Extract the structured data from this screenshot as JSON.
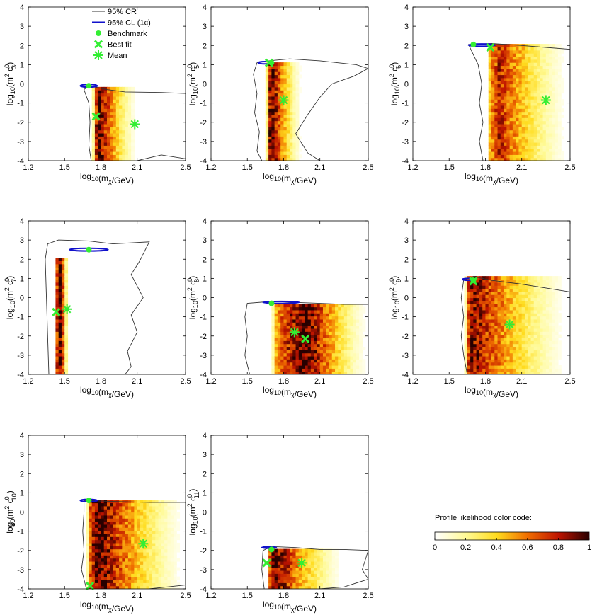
{
  "figure": {
    "x_axis": {
      "label_pre": "log",
      "label_base_sub": "10",
      "label_open": "(m",
      "label_m_sub": "χ",
      "label_close": "/GeV)",
      "ticks": [
        1.2,
        1.5,
        1.8,
        2.1,
        2.5
      ],
      "tick_labels": [
        "1.2",
        "1.5",
        "1.8",
        "2.1",
        "2.5"
      ],
      "range": [
        1.2,
        2.5
      ]
    },
    "y_axis": {
      "ticks": [
        -4,
        -3,
        -2,
        -1,
        0,
        1,
        2,
        3,
        4
      ],
      "tick_labels": [
        "-4",
        "-3",
        "-2",
        "-1",
        "0",
        "1",
        "2",
        "3",
        "4"
      ],
      "range": [
        -4,
        4
      ]
    },
    "legend": {
      "cr": "95% CR",
      "cl": "95% CL (1c)",
      "benchmark": "Benchmark",
      "bestfit": "Best fit",
      "mean": "Mean"
    },
    "colorbar": {
      "title": "Profile likelihood color code:",
      "ticks": [
        0,
        0.2,
        0.4,
        0.6,
        0.8,
        1
      ],
      "tick_labels": [
        "0",
        "0.2",
        "0.4",
        "0.6",
        "0.8",
        "1"
      ]
    },
    "colors": {
      "marker": "#33ee33",
      "ellipse": "#1111cc",
      "contour": "#333333"
    }
  },
  "chart_data": [
    {
      "type": "heatmap",
      "operator": "3",
      "ylabel_sub": "3",
      "benchmark": [
        1.7,
        -0.1
      ],
      "best_fit": [
        1.76,
        -1.7
      ],
      "mean": [
        2.08,
        -2.1
      ],
      "ellipse": {
        "cx": 1.7,
        "cy": -0.1,
        "rx": 0.07,
        "ry": 0.07
      },
      "band": {
        "xmin": 1.72,
        "xpeak": 1.77,
        "xmax": 2.1,
        "ytop": -0.3,
        "peak": 0.95
      },
      "contour": [
        [
          1.72,
          -4
        ],
        [
          1.7,
          -3.2
        ],
        [
          1.71,
          -2
        ],
        [
          1.7,
          -1
        ],
        [
          1.66,
          -0.3
        ],
        [
          1.7,
          -0.1
        ],
        [
          1.85,
          -0.3
        ],
        [
          2.0,
          -0.42
        ],
        [
          2.3,
          -0.45
        ],
        [
          2.5,
          -0.5
        ],
        [
          2.5,
          -3.9
        ],
        [
          2.3,
          -3.7
        ],
        [
          2.1,
          -4
        ]
      ]
    },
    {
      "type": "heatmap",
      "operator": "5",
      "ylabel_sub": "5",
      "benchmark": [
        1.7,
        1.1
      ],
      "best_fit": [
        1.68,
        1.1
      ],
      "mean": [
        1.8,
        -0.85
      ],
      "ellipse": {
        "cx": 1.65,
        "cy": 1.1,
        "rx": 0.06,
        "ry": 0.06
      },
      "band": {
        "xmin": 1.64,
        "xpeak": 1.69,
        "xmax": 1.95,
        "ytop": 1.0,
        "peak": 0.95
      },
      "contour": [
        [
          1.62,
          -4
        ],
        [
          1.58,
          -3.5
        ],
        [
          1.6,
          -2.5
        ],
        [
          1.56,
          -1.5
        ],
        [
          1.58,
          -0.5
        ],
        [
          1.55,
          0.5
        ],
        [
          1.58,
          1.1
        ],
        [
          1.68,
          1.2
        ],
        [
          1.85,
          1.3
        ],
        [
          2.1,
          1.2
        ],
        [
          2.4,
          1.0
        ],
        [
          2.5,
          0.8
        ],
        [
          2.38,
          0.4
        ],
        [
          2.2,
          0.0
        ],
        [
          2.1,
          -0.7
        ],
        [
          2.0,
          -1.6
        ],
        [
          1.9,
          -2.6
        ],
        [
          2.0,
          -3.6
        ],
        [
          2.1,
          -4
        ]
      ]
    },
    {
      "type": "heatmap",
      "operator": "6",
      "ylabel_sub": "6",
      "benchmark": [
        1.7,
        2.05
      ],
      "best_fit": [
        1.84,
        1.9
      ],
      "mean": [
        2.3,
        -0.85
      ],
      "ellipse": {
        "cx": 1.77,
        "cy": 2.02,
        "rx": 0.11,
        "ry": 0.06
      },
      "band": {
        "xmin": 1.8,
        "xpeak": 1.9,
        "xmax": 2.5,
        "ytop": 2.0,
        "peak": 0.75
      },
      "contour": [
        [
          1.78,
          -4
        ],
        [
          1.75,
          -3
        ],
        [
          1.78,
          -2
        ],
        [
          1.75,
          -1
        ],
        [
          1.77,
          0
        ],
        [
          1.74,
          1
        ],
        [
          1.66,
          2.05
        ],
        [
          1.85,
          2.1
        ],
        [
          2.1,
          2.0
        ],
        [
          2.3,
          1.9
        ],
        [
          2.5,
          1.8
        ],
        [
          2.5,
          -4
        ]
      ]
    },
    {
      "type": "heatmap",
      "operator": "7",
      "ylabel_sub": "7",
      "benchmark": [
        1.7,
        2.5
      ],
      "best_fit": [
        1.43,
        -0.75
      ],
      "mean": [
        1.52,
        -0.6
      ],
      "ellipse": {
        "cx": 1.7,
        "cy": 2.5,
        "rx": 0.16,
        "ry": 0.07
      },
      "band": {
        "xmin": 1.4,
        "xpeak": 1.46,
        "xmax": 1.52,
        "ytop": 2.0,
        "peak": 1.0
      },
      "contour": [
        [
          1.37,
          -4
        ],
        [
          1.36,
          -2
        ],
        [
          1.35,
          0
        ],
        [
          1.34,
          2
        ],
        [
          1.36,
          2.8
        ],
        [
          1.45,
          3.0
        ],
        [
          1.7,
          2.95
        ],
        [
          1.9,
          2.8
        ],
        [
          2.2,
          2.9
        ],
        [
          2.12,
          1.9
        ],
        [
          2.05,
          1.2
        ],
        [
          2.15,
          0.0
        ],
        [
          2.05,
          -0.9
        ],
        [
          2.1,
          -1.8
        ],
        [
          2.02,
          -2.8
        ],
        [
          2.05,
          -3.6
        ],
        [
          2.0,
          -4
        ]
      ]
    },
    {
      "type": "heatmap",
      "operator": "8",
      "ylabel_sub": "8",
      "benchmark": [
        1.7,
        -0.3
      ],
      "best_fit": [
        1.98,
        -2.15
      ],
      "mean": [
        1.89,
        -1.8
      ],
      "ellipse": {
        "cx": 1.78,
        "cy": -0.25,
        "rx": 0.15,
        "ry": 0.05
      },
      "band": {
        "xmin": 1.68,
        "xpeak": 1.98,
        "xmax": 2.5,
        "ytop": -0.4,
        "peak": 1.0
      },
      "contour": [
        [
          1.52,
          -4
        ],
        [
          1.48,
          -3
        ],
        [
          1.5,
          -2
        ],
        [
          1.48,
          -1
        ],
        [
          1.5,
          -0.3
        ],
        [
          1.7,
          -0.2
        ],
        [
          1.9,
          -0.25
        ],
        [
          2.1,
          -0.3
        ],
        [
          2.3,
          -0.35
        ],
        [
          2.5,
          -0.35
        ],
        [
          2.5,
          -4
        ]
      ]
    },
    {
      "type": "heatmap",
      "operator": "9",
      "ylabel_sub": "9",
      "benchmark": [
        1.7,
        0.9
      ],
      "best_fit": [
        1.7,
        0.85
      ],
      "mean": [
        2.0,
        -1.4
      ],
      "ellipse": {
        "cx": 1.66,
        "cy": 0.95,
        "rx": 0.05,
        "ry": 0.05
      },
      "band": {
        "xmin": 1.62,
        "xpeak": 1.68,
        "xmax": 2.5,
        "ytop": 1.0,
        "peak": 0.9
      },
      "contour": [
        [
          1.65,
          -4
        ],
        [
          1.62,
          -3
        ],
        [
          1.6,
          -2
        ],
        [
          1.62,
          -1
        ],
        [
          1.6,
          0
        ],
        [
          1.62,
          0.9
        ],
        [
          1.7,
          1.1
        ],
        [
          1.85,
          0.9
        ],
        [
          2.1,
          0.7
        ],
        [
          2.3,
          0.5
        ],
        [
          2.5,
          0.3
        ],
        [
          2.5,
          -4
        ]
      ]
    },
    {
      "type": "heatmap",
      "operator": "10",
      "ylabel_sub": "10",
      "benchmark": [
        1.7,
        0.6
      ],
      "best_fit": [
        1.71,
        -3.85
      ],
      "mean": [
        2.15,
        -1.65
      ],
      "ellipse": {
        "cx": 1.7,
        "cy": 0.6,
        "rx": 0.07,
        "ry": 0.06
      },
      "band": {
        "xmin": 1.67,
        "xpeak": 1.76,
        "xmax": 2.5,
        "ytop": 0.55,
        "peak": 1.0
      },
      "contour": [
        [
          1.68,
          -4
        ],
        [
          1.64,
          -3
        ],
        [
          1.66,
          -2
        ],
        [
          1.65,
          -1
        ],
        [
          1.66,
          0
        ],
        [
          1.66,
          0.6
        ],
        [
          1.9,
          0.55
        ],
        [
          2.2,
          0.5
        ],
        [
          2.5,
          0.5
        ],
        [
          2.5,
          -3.8
        ],
        [
          2.2,
          -4
        ]
      ]
    },
    {
      "type": "heatmap",
      "operator": "11",
      "ylabel_sub": "11",
      "benchmark": [
        1.7,
        -1.95
      ],
      "best_fit": [
        1.66,
        -2.65
      ],
      "mean": [
        1.95,
        -2.65
      ],
      "ellipse": {
        "cx": 1.68,
        "cy": -1.85,
        "rx": 0.06,
        "ry": 0.04
      },
      "band": {
        "xmin": 1.65,
        "xpeak": 1.72,
        "xmax": 2.3,
        "ytop": -1.95,
        "peak": 0.95
      },
      "contour": [
        [
          1.64,
          -4
        ],
        [
          1.62,
          -3
        ],
        [
          1.63,
          -2
        ],
        [
          1.7,
          -1.8
        ],
        [
          1.9,
          -1.85
        ],
        [
          2.1,
          -1.95
        ],
        [
          2.3,
          -1.95
        ],
        [
          2.5,
          -2.0
        ],
        [
          2.45,
          -3.0
        ],
        [
          2.5,
          -3.5
        ],
        [
          2.3,
          -3.9
        ],
        [
          2.1,
          -4
        ]
      ]
    }
  ]
}
